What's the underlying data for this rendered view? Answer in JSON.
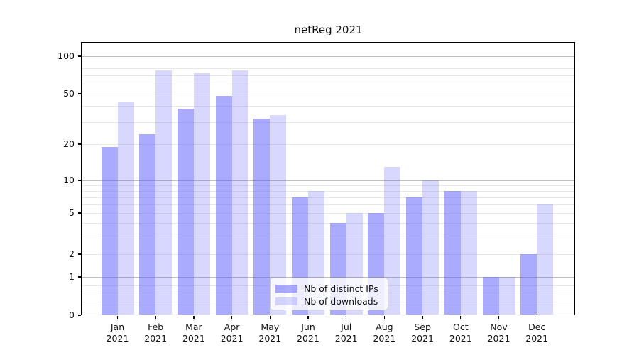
{
  "chart_data": {
    "type": "bar",
    "title": "netReg 2021",
    "categories": [
      "Jan",
      "Feb",
      "Mar",
      "Apr",
      "May",
      "Jun",
      "Jul",
      "Aug",
      "Sep",
      "Oct",
      "Nov",
      "Dec"
    ],
    "year_label": "2021",
    "series": [
      {
        "name": "Nb of distinct IPs",
        "color": "rgba(100,100,255,0.55)",
        "color_hex_on_white": "#a8a8f8",
        "values": [
          19,
          24,
          38,
          48,
          32,
          7,
          4,
          5,
          7,
          8,
          1,
          2
        ]
      },
      {
        "name": "Nb of downloads",
        "color": "rgba(100,100,255,0.25)",
        "color_hex_on_white": "#d8d8fc",
        "values": [
          43,
          77,
          73,
          77,
          34,
          8,
          5,
          13,
          10,
          8,
          1,
          6
        ]
      }
    ],
    "yscale": "symlog",
    "yticks": [
      100,
      50,
      20,
      10,
      5,
      2,
      1,
      0
    ],
    "major_gridlines": [
      100,
      10,
      1
    ],
    "minor_gridlines": [
      0.4,
      0.6,
      0.8,
      2,
      3,
      4,
      5,
      6,
      7,
      8,
      9,
      20,
      30,
      40,
      50,
      60,
      70,
      80,
      90
    ],
    "grid": "on",
    "legend_position": "lower center",
    "gridline_major_color": "#bdbdbd",
    "gridline_minor_color": "#e8e8e8"
  }
}
